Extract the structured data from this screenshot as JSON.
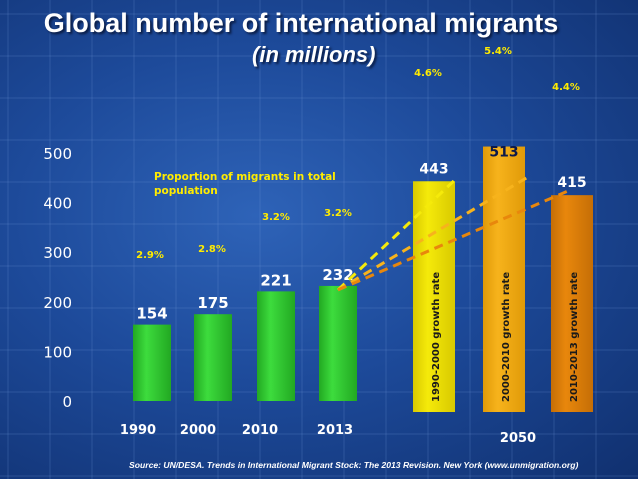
{
  "title": "Global number of international migrants",
  "subtitle": "(in millions)",
  "source": "Source: UN/DESA. Trends in International Migrant Stock: The 2013 Revision. New York (www.unmigration.org)",
  "colors": {
    "historical_bar": "#3ddc3d",
    "projection_1990_2000": "#f5ea0a",
    "projection_2000_2010": "#f7b31c",
    "projection_2010_2013": "#e8870c",
    "annotation_text": "#ffec00",
    "axis_text": "#ffffff"
  },
  "chart_data": {
    "type": "bar",
    "ylim": [
      0,
      500
    ],
    "yticks": [
      "0",
      "100",
      "200",
      "300",
      "400",
      "500"
    ],
    "annotation": "Proportion of migrants in total population",
    "historical": {
      "categories": [
        "1990",
        "2000",
        "2010",
        "2013"
      ],
      "values": [
        154,
        175,
        221,
        232
      ],
      "value_labels": [
        "154",
        "175",
        "221",
        "232"
      ],
      "proportion_labels": [
        "2.9%",
        "2.8%",
        "3.2%",
        "3.2%"
      ]
    },
    "projection": {
      "category": "2050",
      "series": [
        {
          "name": "1990-2000 growth rate",
          "value": 443,
          "value_label": "443",
          "rate_label": "4.6%"
        },
        {
          "name": "2000-2010 growth rate",
          "value": 513,
          "value_label": "513",
          "rate_label": "5.4%"
        },
        {
          "name": "2010-2013 growth rate",
          "value": 415,
          "value_label": "415",
          "rate_label": "4.4%"
        }
      ]
    }
  }
}
